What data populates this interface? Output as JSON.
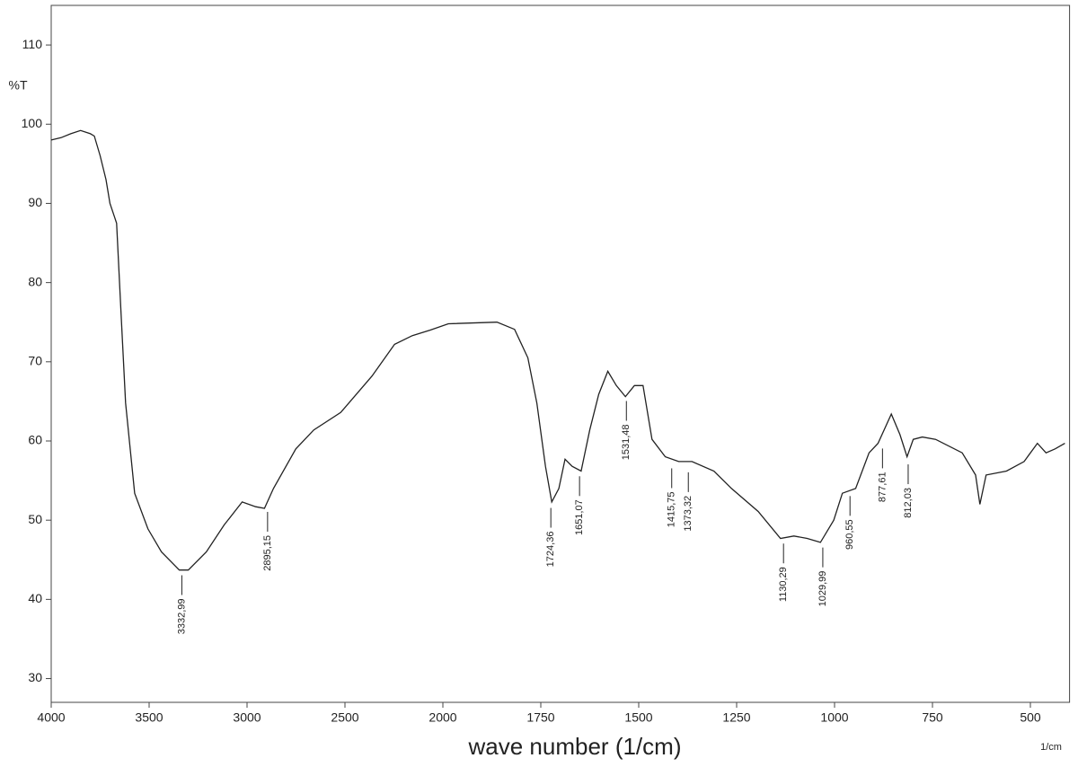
{
  "chart_data": {
    "type": "line",
    "x_label": "wave number (1/cm)",
    "x_unit": "1/cm",
    "y_label": "%T",
    "xlim": [
      4000,
      400
    ],
    "xticks": [
      4000,
      3500,
      3000,
      2500,
      2000,
      1750,
      1500,
      1250,
      1000,
      750,
      500
    ],
    "ylim": [
      27,
      115
    ],
    "yticks": [
      30,
      40,
      50,
      60,
      70,
      80,
      90,
      100,
      110
    ],
    "grid": false,
    "color": "#222222",
    "x": [
      4000,
      3950,
      3900,
      3850,
      3800,
      3780,
      3750,
      3720,
      3700,
      3666,
      3643,
      3620,
      3574,
      3506,
      3437,
      3346,
      3300,
      3208,
      3117,
      3025,
      2956,
      2911,
      2865,
      2751,
      2659,
      2522,
      2362,
      2247,
      2156,
      2064,
      1986,
      1862,
      1817,
      1783,
      1760,
      1738,
      1722,
      1704,
      1688,
      1670,
      1647,
      1625,
      1602,
      1579,
      1557,
      1534,
      1511,
      1489,
      1466,
      1432,
      1398,
      1364,
      1308,
      1263,
      1195,
      1138,
      1104,
      1070,
      1036,
      1002,
      980,
      946,
      912,
      889,
      855,
      833,
      815,
      799,
      776,
      742,
      674,
      640,
      629,
      613,
      561,
      516,
      482,
      460,
      437,
      412
    ],
    "y": [
      98,
      98.3,
      98.8,
      99.2,
      98.8,
      98.5,
      96,
      93,
      90,
      87.5,
      76,
      64.8,
      53.4,
      48.9,
      46,
      43.7,
      43.7,
      46,
      49.4,
      52.3,
      51.7,
      51.5,
      54,
      59,
      61.4,
      63.6,
      68.2,
      72.2,
      73.3,
      74,
      74.8,
      75,
      74.1,
      70.5,
      64.8,
      56.8,
      52.3,
      54,
      57.7,
      56.8,
      56.2,
      61.4,
      65.9,
      68.8,
      67,
      65.6,
      67,
      67,
      60.2,
      58,
      57.4,
      57.4,
      56.2,
      54,
      51.1,
      47.7,
      48,
      47.7,
      47.2,
      50,
      53.4,
      54,
      58.5,
      59.7,
      63.4,
      60.8,
      58,
      60.2,
      60.5,
      60.2,
      58.5,
      55.7,
      52,
      55.7,
      56.2,
      57.4,
      59.7,
      58.5,
      59,
      59.7
    ],
    "peaks": [
      {
        "x": 3332.99,
        "y": 43.5,
        "label": "3332,99"
      },
      {
        "x": 2895.15,
        "y": 51.5,
        "label": "2895,15"
      },
      {
        "x": 1724.36,
        "y": 52,
        "label": "1724,36"
      },
      {
        "x": 1651.07,
        "y": 56,
        "label": "1651,07"
      },
      {
        "x": 1531.48,
        "y": 65.5,
        "label": "1531,48"
      },
      {
        "x": 1415.75,
        "y": 57,
        "label": "1415,75"
      },
      {
        "x": 1373.32,
        "y": 56.5,
        "label": "1373,32"
      },
      {
        "x": 1130.29,
        "y": 47.5,
        "label": "1130,29"
      },
      {
        "x": 1029.99,
        "y": 47,
        "label": "1029,99"
      },
      {
        "x": 960.55,
        "y": 53.5,
        "label": "960,55"
      },
      {
        "x": 877.61,
        "y": 59.5,
        "label": "877,61"
      },
      {
        "x": 812.03,
        "y": 57.5,
        "label": "812,03"
      }
    ]
  }
}
